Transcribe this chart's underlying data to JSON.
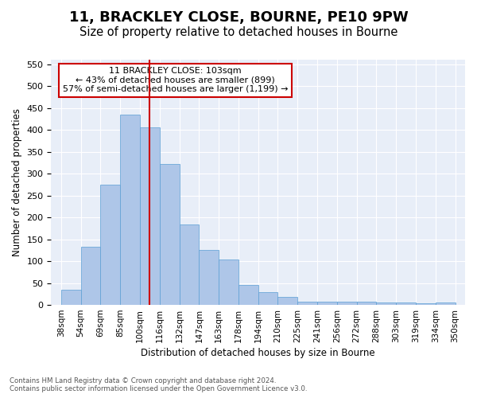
{
  "title": "11, BRACKLEY CLOSE, BOURNE, PE10 9PW",
  "subtitle": "Size of property relative to detached houses in Bourne",
  "xlabel": "Distribution of detached houses by size in Bourne",
  "ylabel": "Number of detached properties",
  "categories": [
    "38sqm",
    "54sqm",
    "69sqm",
    "85sqm",
    "100sqm",
    "116sqm",
    "132sqm",
    "147sqm",
    "163sqm",
    "178sqm",
    "194sqm",
    "210sqm",
    "225sqm",
    "241sqm",
    "256sqm",
    "272sqm",
    "288sqm",
    "303sqm",
    "319sqm",
    "334sqm",
    "350sqm"
  ],
  "values": [
    35,
    133,
    275,
    435,
    405,
    322,
    184,
    126,
    103,
    45,
    30,
    18,
    7,
    8,
    8,
    7,
    5,
    5,
    3,
    5
  ],
  "bar_color": "#aec6e8",
  "bar_edge_color": "#5a9fd4",
  "vline_color": "#cc0000",
  "annotation_text": "11 BRACKLEY CLOSE: 103sqm\n← 43% of detached houses are smaller (899)\n57% of semi-detached houses are larger (1,199) →",
  "annotation_box_color": "#ffffff",
  "annotation_box_edge": "#cc0000",
  "ylim": [
    0,
    560
  ],
  "yticks": [
    0,
    50,
    100,
    150,
    200,
    250,
    300,
    350,
    400,
    450,
    500,
    550
  ],
  "footer1": "Contains HM Land Registry data © Crown copyright and database right 2024.",
  "footer2": "Contains public sector information licensed under the Open Government Licence v3.0.",
  "bg_color": "#e8eef8",
  "title_fontsize": 13,
  "subtitle_fontsize": 10.5
}
